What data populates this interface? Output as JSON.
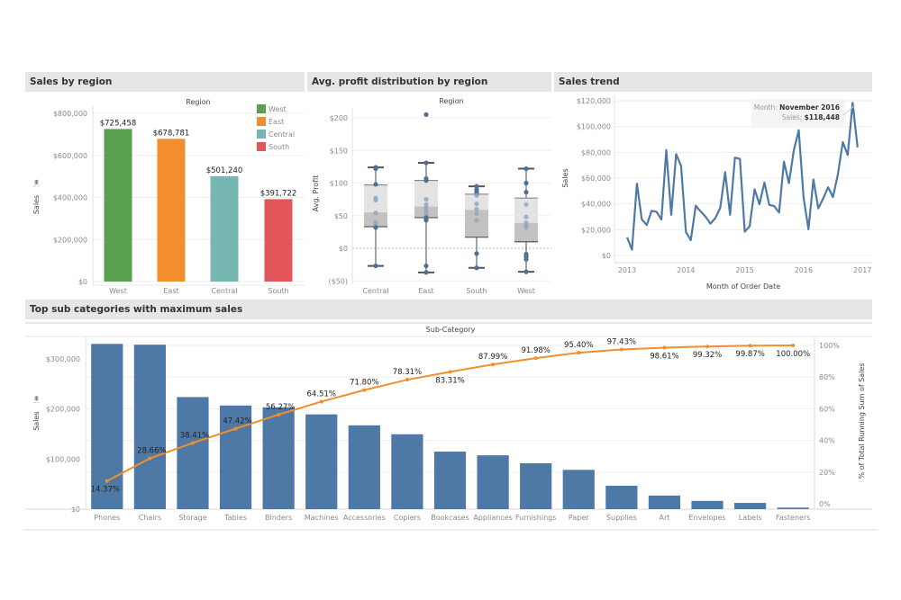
{
  "panels": {
    "sales_by_region": {
      "title": "Sales by region"
    },
    "profit_distribution": {
      "title": "Avg. profit distribution by region"
    },
    "sales_trend": {
      "title": "Sales trend"
    },
    "top_subcategories": {
      "title": "Top sub categories with maximum sales"
    }
  },
  "chart_data": [
    {
      "id": "sales_by_region",
      "type": "bar",
      "title": "Sales by region",
      "column_header": "Region",
      "xlabel": "",
      "ylabel": "Sales",
      "ylim": [
        0,
        800000
      ],
      "yticks": [
        0,
        200000,
        400000,
        600000,
        800000
      ],
      "ytick_labels": [
        "$0",
        "$200,000",
        "$400,000",
        "$600,000",
        "$800,000"
      ],
      "categories": [
        "West",
        "East",
        "Central",
        "South"
      ],
      "values": [
        725458,
        678781,
        501240,
        391722
      ],
      "data_labels": [
        "$725,458",
        "$678,781",
        "$501,240",
        "$391,722"
      ],
      "colors": [
        "#59a14f",
        "#f28e2b",
        "#76b7b2",
        "#e15759"
      ],
      "legend": {
        "placement": "top-right",
        "entries": [
          {
            "label": "West",
            "color": "#59a14f"
          },
          {
            "label": "East",
            "color": "#f28e2b"
          },
          {
            "label": "Central",
            "color": "#76b7b2"
          },
          {
            "label": "South",
            "color": "#e15759"
          }
        ]
      },
      "grid": true
    },
    {
      "id": "profit_distribution",
      "type": "box",
      "title": "Avg. profit distribution by region",
      "column_header": "Region",
      "xlabel": "",
      "ylabel": "Avg. Profit",
      "ylim": [
        -50,
        210
      ],
      "yticks": [
        -50,
        0,
        50,
        100,
        150,
        200
      ],
      "ytick_labels": [
        "($50)",
        "$0",
        "$50",
        "$100",
        "$150",
        "$200"
      ],
      "categories": [
        "Central",
        "East",
        "South",
        "West"
      ],
      "boxes": [
        {
          "whisker_low": -27,
          "q1": 33,
          "median": 55,
          "q3": 97,
          "whisker_high": 124,
          "points": [
            124,
            122,
            98,
            77,
            74,
            54,
            40,
            36,
            32,
            -27
          ]
        },
        {
          "whisker_low": -37,
          "q1": 47,
          "median": 64,
          "q3": 104,
          "whisker_high": 131,
          "points": [
            205,
            131,
            107,
            104,
            75,
            67,
            62,
            57,
            52,
            47,
            45,
            43,
            -27,
            -37
          ]
        },
        {
          "whisker_low": -30,
          "q1": 17,
          "median": 59,
          "q3": 83,
          "whisker_high": 95,
          "points": [
            95,
            90,
            87,
            84,
            81,
            68,
            60,
            53,
            43,
            -8,
            -30
          ]
        },
        {
          "whisker_low": -36,
          "q1": 10,
          "median": 39,
          "q3": 77,
          "whisker_high": 122,
          "points": [
            122,
            100,
            86,
            67,
            48,
            39,
            35,
            32,
            -9,
            -13,
            -17,
            -36
          ]
        }
      ],
      "zero_line": true,
      "grid": true
    },
    {
      "id": "sales_trend",
      "type": "line",
      "title": "Sales trend",
      "xlabel": "Month of Order Date",
      "ylabel": "Sales",
      "ylim": [
        0,
        120000
      ],
      "yticks": [
        0,
        20000,
        40000,
        60000,
        80000,
        100000,
        120000
      ],
      "ytick_labels": [
        "$0",
        "$20,000",
        "$40,000",
        "$60,000",
        "$80,000",
        "$100,000",
        "$120,000"
      ],
      "xticks": [
        "2013",
        "2014",
        "2015",
        "2016",
        "2017"
      ],
      "x_start": "2013-01",
      "series": [
        {
          "name": "Sales",
          "color": "#4e79a7",
          "values": [
            14000,
            4500,
            55700,
            28000,
            23600,
            34600,
            33900,
            27900,
            81800,
            31500,
            78600,
            69500,
            18200,
            11900,
            38600,
            34200,
            30100,
            24700,
            29000,
            36900,
            64600,
            31500,
            75900,
            74900,
            18500,
            22600,
            51300,
            39800,
            56600,
            39200,
            38300,
            33300,
            72800,
            56100,
            81400,
            97200,
            44700,
            20300,
            58900,
            36500,
            44300,
            52900,
            45300,
            63100,
            87900,
            77900,
            118448,
            83800
          ]
        }
      ],
      "tooltip": {
        "month_label": "Month:",
        "month_value": "November 2016",
        "sales_label": "Sales:",
        "sales_value": "$118,448"
      },
      "grid": true
    },
    {
      "id": "top_subcategories",
      "type": "bar",
      "subtype": "pareto",
      "title": "Top sub categories with maximum sales",
      "column_header": "Sub-Category",
      "xlabel": "",
      "ylabel": "Sales",
      "y2label": "% of Total Running Sum of Sales",
      "ylim": [
        0,
        340000
      ],
      "yticks": [
        0,
        100000,
        200000,
        300000
      ],
      "ytick_labels": [
        "$0",
        "$100,000",
        "$200,000",
        "$300,000"
      ],
      "y2lim": [
        0,
        100
      ],
      "y2ticks": [
        0,
        20,
        40,
        60,
        80,
        100
      ],
      "y2tick_labels": [
        "0%",
        "20%",
        "40%",
        "60%",
        "80%",
        "100%"
      ],
      "categories": [
        "Phones",
        "Chairs",
        "Storage",
        "Tables",
        "Binders",
        "Machines",
        "Accessories",
        "Copiers",
        "Bookcases",
        "Appliances",
        "Furnishings",
        "Paper",
        "Supplies",
        "Art",
        "Envelopes",
        "Labels",
        "Fasteners"
      ],
      "series": [
        {
          "name": "Sales",
          "type": "bar",
          "color": "#4e79a7",
          "values": [
            330007,
            328449,
            223844,
            206966,
            203413,
            189239,
            167380,
            149528,
            114880,
            107532,
            91705,
            78479,
            46674,
            27119,
            16476,
            12486,
            3024
          ]
        },
        {
          "name": "% of Total Running Sum of Sales",
          "type": "line",
          "color": "#f28e2b",
          "values": [
            14.37,
            28.66,
            38.41,
            47.42,
            56.27,
            64.51,
            71.8,
            78.31,
            83.31,
            87.99,
            91.98,
            95.4,
            97.43,
            98.61,
            99.32,
            99.87,
            100.0
          ],
          "labels": [
            "14.37%",
            "28.66%",
            "38.41%",
            "47.42%",
            "56.27%",
            "64.51%",
            "71.80%",
            "78.31%",
            "83.31%",
            "87.99%",
            "91.98%",
            "95.40%",
            "97.43%",
            "98.61%",
            "99.32%",
            "99.87%",
            "100.00%"
          ]
        }
      ],
      "grid": true
    }
  ]
}
